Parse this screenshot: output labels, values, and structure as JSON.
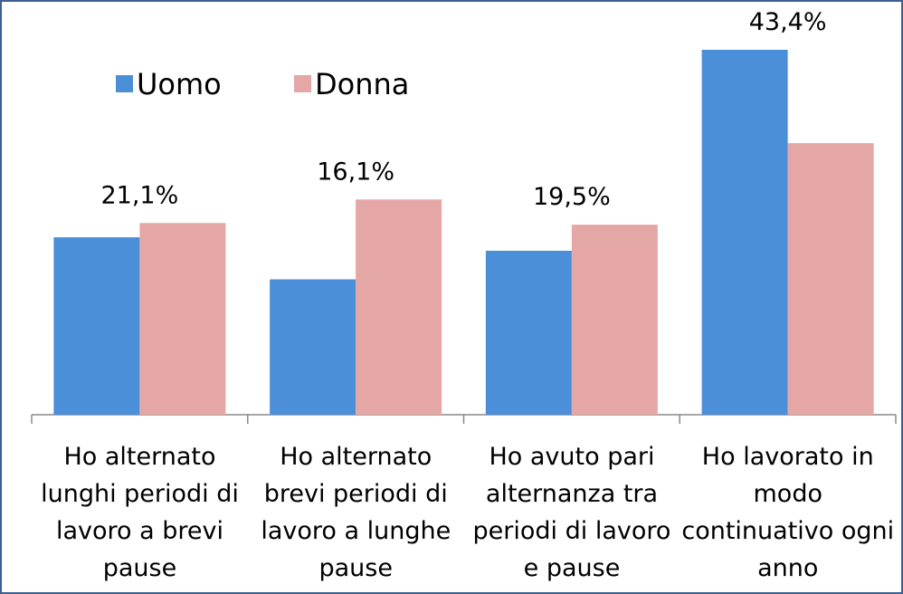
{
  "chart_data": {
    "type": "bar",
    "categories": [
      "Ho alternato lunghi periodi di lavoro a brevi pause",
      "Ho alternato brevi periodi di lavoro a lunghe pause",
      "Ho avuto pari alternanza tra periodi di lavoro e pause",
      "Ho lavorato in modo continuativo ogni anno"
    ],
    "series": [
      {
        "name": "Uomo",
        "color": "#4a8fd8",
        "values": [
          21.1,
          16.1,
          19.5,
          43.4
        ],
        "value_labels": [
          "21,1%",
          "16,1%",
          "19,5%",
          "43,4%"
        ]
      },
      {
        "name": "Donna",
        "color": "#e5a7a5",
        "values": [
          22.8,
          25.6,
          22.6,
          32.3
        ]
      }
    ],
    "legend": "top-left"
  }
}
